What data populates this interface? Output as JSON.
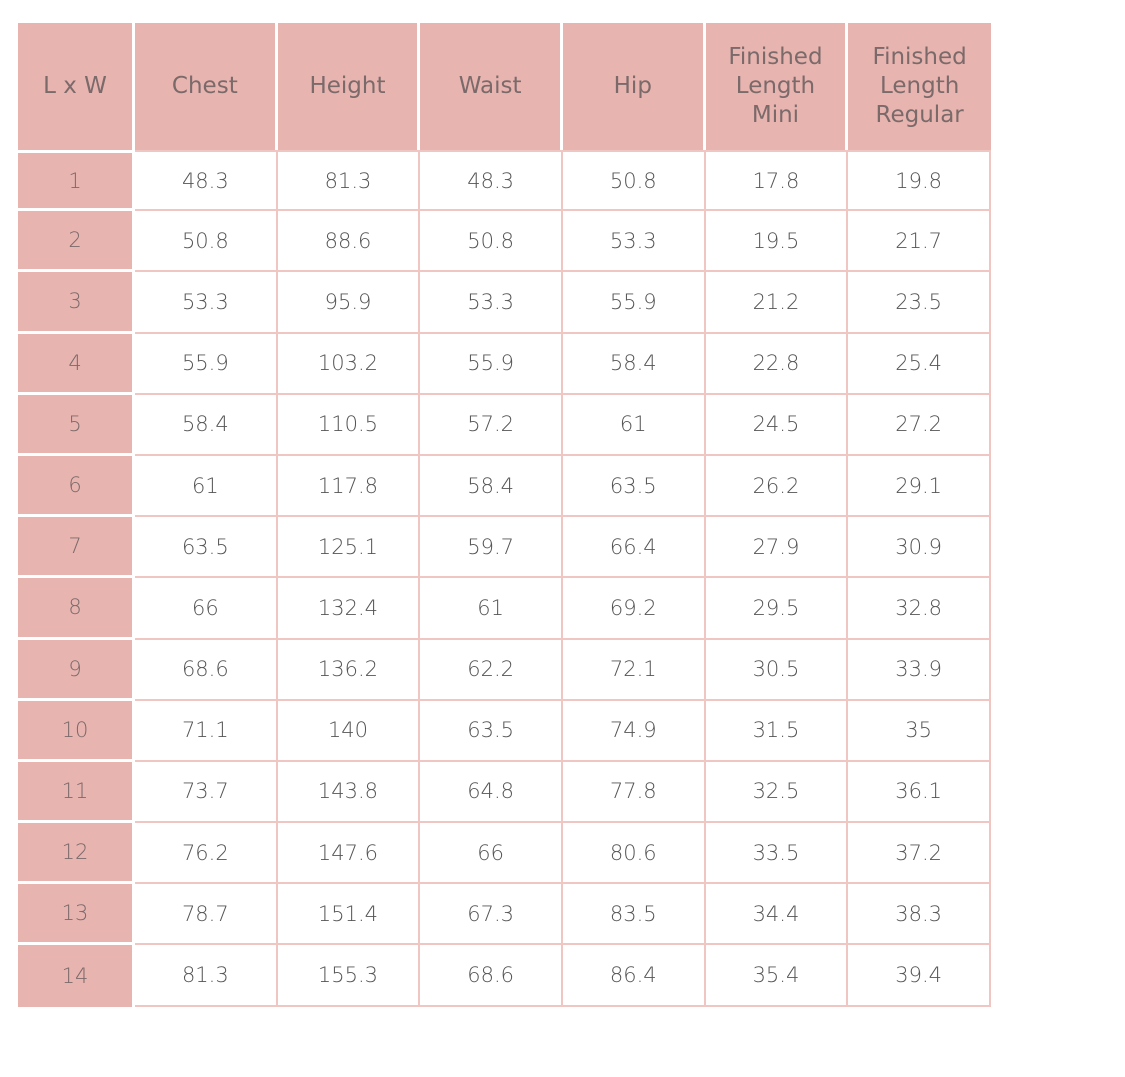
{
  "table": {
    "headers": [
      "L x W",
      "Chest",
      "Height",
      "Waist",
      "Hip",
      "Finished Length Mini",
      "Finished Length Regular"
    ],
    "rows": [
      [
        "1",
        "48.3",
        "81.3",
        "48.3",
        "50.8",
        "17.8",
        "19.8"
      ],
      [
        "2",
        "50.8",
        "88.6",
        "50.8",
        "53.3",
        "19.5",
        "21.7"
      ],
      [
        "3",
        "53.3",
        "95.9",
        "53.3",
        "55.9",
        "21.2",
        "23.5"
      ],
      [
        "4",
        "55.9",
        "103.2",
        "55.9",
        "58.4",
        "22.8",
        "25.4"
      ],
      [
        "5",
        "58.4",
        "110.5",
        "57.2",
        "61",
        "24.5",
        "27.2"
      ],
      [
        "6",
        "61",
        "117.8",
        "58.4",
        "63.5",
        "26.2",
        "29.1"
      ],
      [
        "7",
        "63.5",
        "125.1",
        "59.7",
        "66.4",
        "27.9",
        "30.9"
      ],
      [
        "8",
        "66",
        "132.4",
        "61",
        "69.2",
        "29.5",
        "32.8"
      ],
      [
        "9",
        "68.6",
        "136.2",
        "62.2",
        "72.1",
        "30.5",
        "33.9"
      ],
      [
        "10",
        "71.1",
        "140",
        "63.5",
        "74.9",
        "31.5",
        "35"
      ],
      [
        "11",
        "73.7",
        "143.8",
        "64.8",
        "77.8",
        "32.5",
        "36.1"
      ],
      [
        "12",
        "76.2",
        "147.6",
        "66",
        "80.6",
        "33.5",
        "37.2"
      ],
      [
        "13",
        "78.7",
        "151.4",
        "67.3",
        "83.5",
        "34.4",
        "38.3"
      ],
      [
        "14",
        "81.3",
        "155.3",
        "68.6",
        "86.4",
        "35.4",
        "39.4"
      ]
    ]
  },
  "colors": {
    "header_bg": "#e8b4b0",
    "grid_line": "#efc6c2",
    "text": "#555555"
  }
}
